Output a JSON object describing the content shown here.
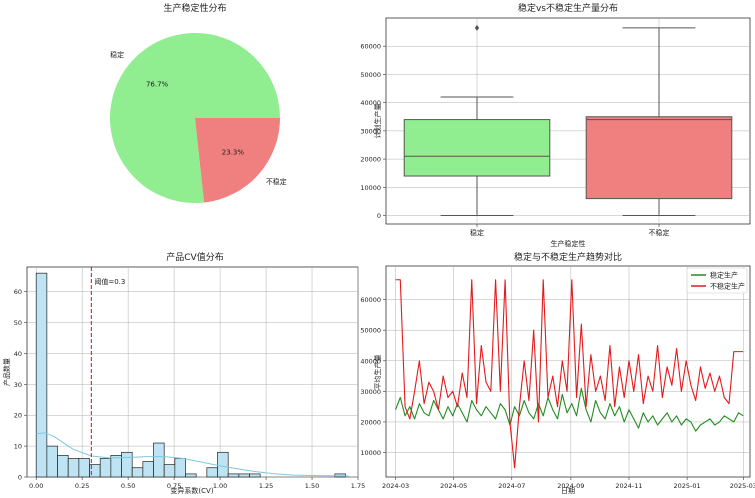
{
  "colors": {
    "stable": "#90EE90",
    "unstable": "#F08080",
    "stable_line": "#228B22",
    "unstable_line": "#E31A1C",
    "hist": "#BEE3F2",
    "kde": "#7EC8DF",
    "threshold": "#D62728"
  },
  "chart_data": [
    {
      "type": "pie",
      "title": "生产稳定性分布",
      "slices": [
        {
          "label": "稳定",
          "value": 76.7,
          "pct_label": "76.7%",
          "color": "#90EE90"
        },
        {
          "label": "不稳定",
          "value": 23.3,
          "pct_label": "23.3%",
          "color": "#F08080"
        }
      ]
    },
    {
      "type": "box",
      "title": "稳定vs不稳定生产量分布",
      "xlabel": "生产稳定性",
      "ylabel": "计划生产量",
      "categories": [
        "稳定",
        "不稳定"
      ],
      "ylim": [
        -3000,
        70000
      ],
      "yticks": [
        0,
        10000,
        20000,
        30000,
        40000,
        50000,
        60000
      ],
      "boxes": [
        {
          "name": "稳定",
          "min": 0,
          "q1": 14000,
          "median": 21000,
          "q3": 34000,
          "max": 42000,
          "outliers": [
            66500
          ],
          "color": "#90EE90"
        },
        {
          "name": "不稳定",
          "min": 0,
          "q1": 6000,
          "median": 34000,
          "q3": 35000,
          "max": 66500,
          "outliers": [],
          "color": "#F08080"
        }
      ]
    },
    {
      "type": "histogram",
      "title": "产品CV值分布",
      "xlabel": "变异系数(CV)",
      "ylabel": "产品数量",
      "xlim": [
        -0.05,
        1.75
      ],
      "ylim": [
        0,
        68
      ],
      "xticks": [
        0.0,
        0.25,
        0.5,
        0.75,
        1.0,
        1.25,
        1.5,
        1.75
      ],
      "xtick_labels": [
        "0.00",
        "0.25",
        "0.50",
        "0.75",
        "1.00",
        "1.25",
        "1.50",
        "1.75"
      ],
      "yticks": [
        0,
        10,
        20,
        30,
        40,
        50,
        60
      ],
      "bin_start": 0.0,
      "bin_width": 0.058,
      "counts": [
        66,
        10,
        7,
        6,
        6,
        4,
        6,
        7,
        8,
        3,
        5,
        11,
        4,
        6,
        1,
        0,
        3,
        8,
        1,
        1,
        1,
        0,
        0,
        0,
        0,
        0,
        0,
        0,
        1
      ],
      "kde": {
        "x": [
          0.0,
          0.05,
          0.1,
          0.15,
          0.2,
          0.3,
          0.4,
          0.5,
          0.6,
          0.7,
          0.8,
          0.9,
          1.0,
          1.1,
          1.2,
          1.3,
          1.4,
          1.5,
          1.6,
          1.7
        ],
        "y": [
          14,
          14.3,
          13,
          11,
          9,
          6.8,
          6.2,
          6.3,
          6.6,
          6.6,
          6.0,
          4.8,
          3.6,
          2.6,
          1.7,
          1.0,
          0.6,
          0.5,
          0.4,
          0.3
        ]
      },
      "threshold": {
        "value": 0.3,
        "label": "阈值=0.3"
      }
    },
    {
      "type": "line",
      "title": "稳定与不稳定生产趋势对比",
      "xlabel": "日期",
      "ylabel": "平均生产量",
      "ylim": [
        2000,
        71000
      ],
      "yticks": [
        10000,
        20000,
        30000,
        40000,
        50000,
        60000
      ],
      "xticks": [
        "2024-03",
        "2024-05",
        "2024-07",
        "2024-09",
        "2024-11",
        "2025-01",
        "2025-03"
      ],
      "legend_position": "top-right",
      "series": [
        {
          "name": "稳定生产",
          "color": "#228B22",
          "x": [
            "2024-03-01",
            "2024-03-06",
            "2024-03-11",
            "2024-03-16",
            "2024-03-21",
            "2024-03-26",
            "2024-03-31",
            "2024-04-05",
            "2024-04-10",
            "2024-04-15",
            "2024-04-20",
            "2024-04-25",
            "2024-04-30",
            "2024-05-05",
            "2024-05-10",
            "2024-05-15",
            "2024-05-20",
            "2024-05-25",
            "2024-05-30",
            "2024-06-04",
            "2024-06-09",
            "2024-06-14",
            "2024-06-19",
            "2024-06-24",
            "2024-06-29",
            "2024-07-04",
            "2024-07-09",
            "2024-07-14",
            "2024-07-19",
            "2024-07-24",
            "2024-07-29",
            "2024-08-03",
            "2024-08-08",
            "2024-08-13",
            "2024-08-18",
            "2024-08-23",
            "2024-08-28",
            "2024-09-02",
            "2024-09-07",
            "2024-09-12",
            "2024-09-17",
            "2024-09-22",
            "2024-09-27",
            "2024-10-02",
            "2024-10-07",
            "2024-10-12",
            "2024-10-17",
            "2024-10-22",
            "2024-10-27",
            "2024-11-01",
            "2024-11-06",
            "2024-11-11",
            "2024-11-16",
            "2024-11-21",
            "2024-11-26",
            "2024-12-01",
            "2024-12-06",
            "2024-12-11",
            "2024-12-16",
            "2024-12-21",
            "2024-12-26",
            "2024-12-31",
            "2025-01-05",
            "2025-01-10",
            "2025-01-15",
            "2025-01-20",
            "2025-01-25",
            "2025-01-30",
            "2025-02-04",
            "2025-02-09",
            "2025-02-14",
            "2025-02-19",
            "2025-02-24",
            "2025-03-01"
          ],
          "y": [
            24000,
            28000,
            22000,
            25000,
            21000,
            26000,
            23000,
            22000,
            27000,
            24000,
            21000,
            25000,
            22000,
            26000,
            23000,
            20000,
            27000,
            24000,
            22000,
            25000,
            23000,
            21000,
            26000,
            24000,
            19000,
            25000,
            22000,
            27000,
            23000,
            21000,
            26000,
            22000,
            28000,
            24000,
            21000,
            29000,
            23000,
            26000,
            22000,
            31000,
            24000,
            20000,
            27000,
            23000,
            21000,
            26000,
            22000,
            25000,
            20000,
            24000,
            21000,
            18000,
            23000,
            20000,
            22000,
            19000,
            21000,
            23000,
            20000,
            22000,
            19000,
            21000,
            20000,
            17000,
            19000,
            20000,
            21000,
            19000,
            20000,
            22000,
            21000,
            20000,
            23000,
            22000
          ]
        },
        {
          "name": "不稳定生产",
          "color": "#E31A1C",
          "x": [
            "2024-03-01",
            "2024-03-06",
            "2024-03-11",
            "2024-03-16",
            "2024-03-21",
            "2024-03-26",
            "2024-03-31",
            "2024-04-05",
            "2024-04-10",
            "2024-04-15",
            "2024-04-20",
            "2024-04-25",
            "2024-04-30",
            "2024-05-05",
            "2024-05-10",
            "2024-05-15",
            "2024-05-20",
            "2024-05-25",
            "2024-05-30",
            "2024-06-04",
            "2024-06-09",
            "2024-06-14",
            "2024-06-19",
            "2024-06-24",
            "2024-06-29",
            "2024-07-04",
            "2024-07-09",
            "2024-07-14",
            "2024-07-19",
            "2024-07-24",
            "2024-07-29",
            "2024-08-03",
            "2024-08-08",
            "2024-08-13",
            "2024-08-18",
            "2024-08-23",
            "2024-08-28",
            "2024-09-02",
            "2024-09-07",
            "2024-09-12",
            "2024-09-17",
            "2024-09-22",
            "2024-09-27",
            "2024-10-02",
            "2024-10-07",
            "2024-10-12",
            "2024-10-17",
            "2024-10-22",
            "2024-10-27",
            "2024-11-01",
            "2024-11-06",
            "2024-11-11",
            "2024-11-16",
            "2024-11-21",
            "2024-11-26",
            "2024-12-01",
            "2024-12-06",
            "2024-12-11",
            "2024-12-16",
            "2024-12-21",
            "2024-12-26",
            "2024-12-31",
            "2025-01-05",
            "2025-01-10",
            "2025-01-15",
            "2025-01-20",
            "2025-01-25",
            "2025-01-30",
            "2025-02-04",
            "2025-02-09",
            "2025-02-14",
            "2025-02-19",
            "2025-02-24",
            "2025-03-01"
          ],
          "y": [
            66500,
            66500,
            25000,
            21000,
            30000,
            40000,
            26000,
            33000,
            30000,
            24000,
            35000,
            28000,
            30000,
            25000,
            36000,
            28000,
            66500,
            26000,
            45000,
            33000,
            30000,
            66500,
            30000,
            66500,
            20000,
            5000,
            25000,
            40000,
            27000,
            50000,
            20000,
            66500,
            28000,
            35000,
            25000,
            40000,
            30000,
            66500,
            28000,
            52000,
            25000,
            42000,
            30000,
            35000,
            27000,
            45000,
            25000,
            38000,
            28000,
            40000,
            30000,
            42000,
            26000,
            35000,
            30000,
            45000,
            28000,
            38000,
            32000,
            44000,
            30000,
            40000,
            32000,
            27000,
            38000,
            31000,
            36000,
            30000,
            35000,
            28000,
            26000,
            43000,
            43000,
            43000
          ]
        }
      ]
    }
  ]
}
